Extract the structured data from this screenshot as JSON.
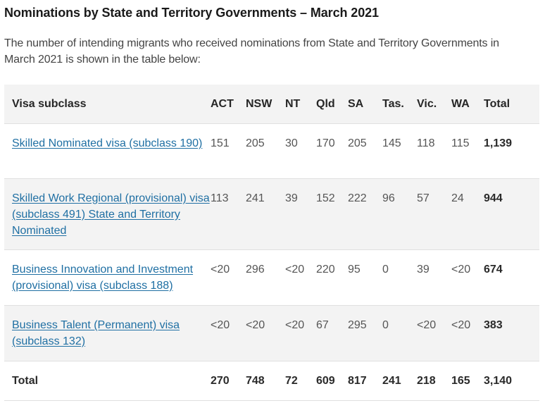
{
  "title": "Nominations by State and Territory Governments – March 2021",
  "intro": "The number of intending migrants who received nominations from State and Territory Governments in March 2021 is shown in the table below:",
  "table": {
    "headers": [
      "Visa subclass",
      "ACT",
      "NSW",
      "NT",
      "Qld",
      "SA",
      "Tas.",
      "Vic.",
      "WA",
      "Total"
    ],
    "rows": [
      {
        "label": "Skilled Nominated visa (subclass 190)",
        "values": [
          "151",
          "205",
          "30",
          "170",
          "205",
          "145",
          "118",
          "115"
        ],
        "total": "1,139"
      },
      {
        "label": "Skilled Work Regional (provisional) visa (subclass 491) State and Territory Nominated",
        "values": [
          "113",
          "241",
          "39",
          "152",
          "222",
          "96",
          "57",
          "24"
        ],
        "total": "944"
      },
      {
        "label": "Business Innovation and Investment (provisional) visa (subclass 188)",
        "values": [
          "<20",
          "296",
          "<20",
          "220",
          "95",
          "0",
          "39",
          "<20"
        ],
        "total": "674"
      },
      {
        "label": "Business Talent (Permanent) visa (subclass 132)",
        "values": [
          "<20",
          "<20",
          "<20",
          "67",
          "295",
          "0",
          "<20",
          "<20"
        ],
        "total": "383"
      }
    ],
    "total_row": {
      "label": "Total",
      "values": [
        "270",
        "748",
        "72",
        "609",
        "817",
        "241",
        "218",
        "165"
      ],
      "total": "3,140"
    }
  },
  "colors": {
    "link": "#1f6fa3",
    "row_shade": "#f3f3f3",
    "border": "#e0e0e0"
  }
}
